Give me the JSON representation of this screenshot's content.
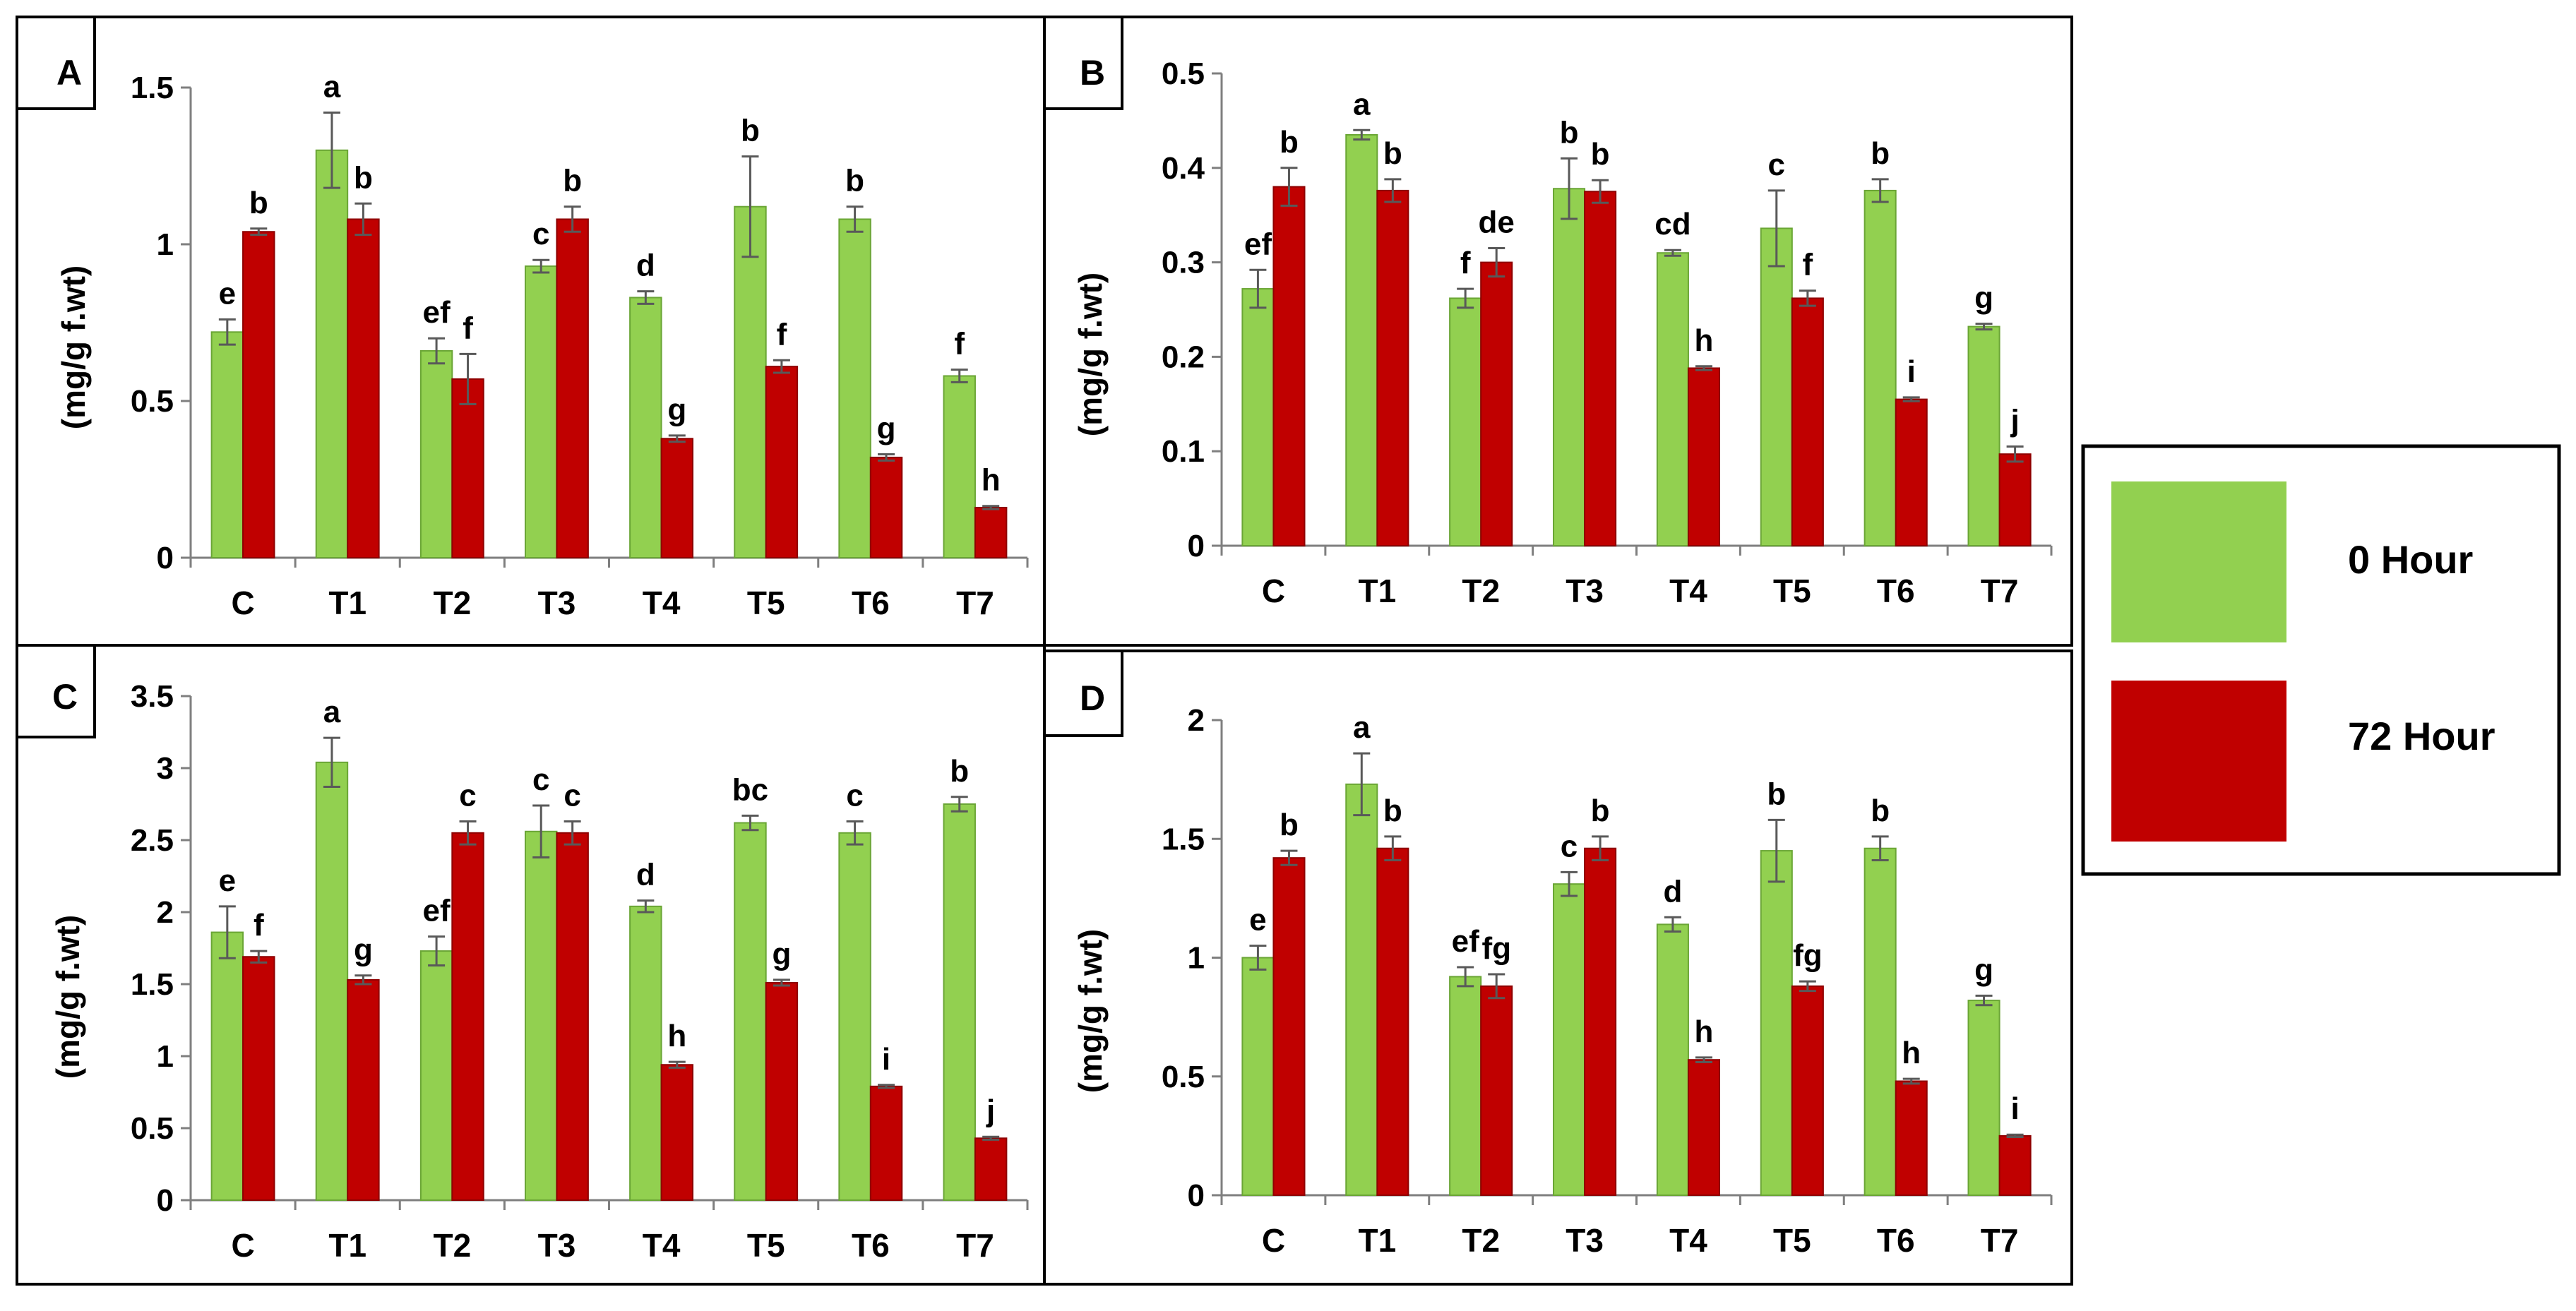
{
  "legend": {
    "entries": [
      {
        "label": "0 Hour",
        "color": "#92d050"
      },
      {
        "label": "72 Hour",
        "color": "#c00000"
      }
    ]
  },
  "chart_data": [
    {
      "panel": "A",
      "type": "bar",
      "ylabel": "(mg/g f.wt)",
      "ylim": [
        0,
        1.5
      ],
      "yticks": [
        0,
        0.5,
        1,
        1.5
      ],
      "ytick_labels": [
        "0",
        "0.5",
        "1",
        "1.5"
      ],
      "categories": [
        "C",
        "T1",
        "T2",
        "T3",
        "T4",
        "T5",
        "T6",
        "T7"
      ],
      "series": [
        {
          "name": "0 Hour",
          "values": [
            0.72,
            1.3,
            0.66,
            0.93,
            0.83,
            1.12,
            1.08,
            0.58
          ],
          "errors": [
            0.04,
            0.12,
            0.04,
            0.02,
            0.02,
            0.16,
            0.04,
            0.02
          ],
          "letters": [
            "e",
            "a",
            "ef",
            "c",
            "d",
            "b",
            "b",
            "f"
          ]
        },
        {
          "name": "72 Hour",
          "values": [
            1.04,
            1.08,
            0.57,
            1.08,
            0.38,
            0.61,
            0.32,
            0.16
          ],
          "errors": [
            0.01,
            0.05,
            0.08,
            0.04,
            0.01,
            0.02,
            0.01,
            0.005
          ],
          "letters": [
            "b",
            "b",
            "f",
            "b",
            "g",
            "f",
            "g",
            "h"
          ]
        }
      ]
    },
    {
      "panel": "B",
      "type": "bar",
      "ylabel": "(mg/g f.wt)",
      "ylim": [
        0,
        0.5
      ],
      "yticks": [
        0,
        0.1,
        0.2,
        0.3,
        0.4,
        0.5
      ],
      "ytick_labels": [
        "0",
        "0.1",
        "0.2",
        "0.3",
        "0.4",
        "0.5"
      ],
      "categories": [
        "C",
        "T1",
        "T2",
        "T3",
        "T4",
        "T5",
        "T6",
        "T7"
      ],
      "series": [
        {
          "name": "0 Hour",
          "values": [
            0.272,
            0.435,
            0.262,
            0.378,
            0.31,
            0.336,
            0.376,
            0.232
          ],
          "errors": [
            0.02,
            0.005,
            0.01,
            0.032,
            0.003,
            0.04,
            0.012,
            0.003
          ],
          "letters": [
            "ef",
            "a",
            "f",
            "b",
            "cd",
            "c",
            "b",
            "g"
          ]
        },
        {
          "name": "72 Hour",
          "values": [
            0.38,
            0.376,
            0.3,
            0.375,
            0.188,
            0.262,
            0.155,
            0.097
          ],
          "errors": [
            0.02,
            0.012,
            0.015,
            0.012,
            0.002,
            0.008,
            0.002,
            0.008
          ],
          "letters": [
            "b",
            "b",
            "de",
            "b",
            "h",
            "f",
            "i",
            "j"
          ]
        }
      ]
    },
    {
      "panel": "C",
      "type": "bar",
      "ylabel": "(mg/g f.wt)",
      "ylim": [
        0,
        3.5
      ],
      "yticks": [
        0,
        0.5,
        1,
        1.5,
        2,
        2.5,
        3,
        3.5
      ],
      "ytick_labels": [
        "0",
        "0.5",
        "1",
        "1.5",
        "2",
        "2.5",
        "3",
        "3.5"
      ],
      "categories": [
        "C",
        "T1",
        "T2",
        "T3",
        "T4",
        "T5",
        "T6",
        "T7"
      ],
      "series": [
        {
          "name": "0 Hour",
          "values": [
            1.86,
            3.04,
            1.73,
            2.56,
            2.04,
            2.62,
            2.55,
            2.75
          ],
          "errors": [
            0.18,
            0.17,
            0.1,
            0.18,
            0.04,
            0.05,
            0.08,
            0.05
          ],
          "letters": [
            "e",
            "a",
            "ef",
            "c",
            "d",
            "bc",
            "c",
            "b"
          ]
        },
        {
          "name": "72 Hour",
          "values": [
            1.69,
            1.53,
            2.55,
            2.55,
            0.94,
            1.51,
            0.79,
            0.43
          ],
          "errors": [
            0.04,
            0.03,
            0.08,
            0.08,
            0.02,
            0.02,
            0.01,
            0.01
          ],
          "letters": [
            "f",
            "g",
            "c",
            "c",
            "h",
            "g",
            "i",
            "j"
          ]
        }
      ]
    },
    {
      "panel": "D",
      "type": "bar",
      "ylabel": "(mg/g f.wt)",
      "ylim": [
        0,
        2
      ],
      "yticks": [
        0,
        0.5,
        1,
        1.5,
        2
      ],
      "ytick_labels": [
        "0",
        "0.5",
        "1",
        "1.5",
        "2"
      ],
      "categories": [
        "C",
        "T1",
        "T2",
        "T3",
        "T4",
        "T5",
        "T6",
        "T7"
      ],
      "series": [
        {
          "name": "0 Hour",
          "values": [
            1.0,
            1.73,
            0.92,
            1.31,
            1.14,
            1.45,
            1.46,
            0.82
          ],
          "errors": [
            0.05,
            0.13,
            0.04,
            0.05,
            0.03,
            0.13,
            0.05,
            0.02
          ],
          "letters": [
            "e",
            "a",
            "ef",
            "c",
            "d",
            "b",
            "b",
            "g"
          ]
        },
        {
          "name": "72 Hour",
          "values": [
            1.42,
            1.46,
            0.88,
            1.46,
            0.57,
            0.88,
            0.48,
            0.25
          ],
          "errors": [
            0.03,
            0.05,
            0.05,
            0.05,
            0.01,
            0.02,
            0.01,
            0.005
          ],
          "letters": [
            "b",
            "b",
            "fg",
            "b",
            "h",
            "fg",
            "h",
            "i"
          ]
        }
      ]
    }
  ]
}
